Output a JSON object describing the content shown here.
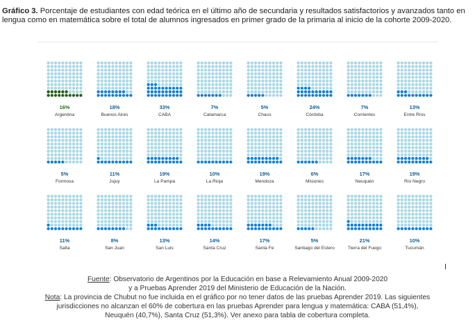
{
  "title": {
    "prefix": "Gráfico 3.",
    "text": "Porcentaje de estudiantes con edad teórica en el último año de secundaria y resultados satisfactorios y avanzados tanto en lengua como en matemática sobre el total de alumnos ingresados en primer grado de la primaria al inicio de la cohorte 2009-2020."
  },
  "colors": {
    "empty": "#a8d7e6",
    "filled": "#0e7fd6",
    "argentina": "#1f5f12"
  },
  "chart_data": {
    "type": "waffle",
    "grid_size": [
      10,
      10
    ],
    "unit": "%",
    "items": [
      {
        "name": "Argentina",
        "value": 16,
        "label": "16%"
      },
      {
        "name": "Buenos Aires",
        "value": 18,
        "label": "18%"
      },
      {
        "name": "CABA",
        "value": 33,
        "label": "33%"
      },
      {
        "name": "Catamarca",
        "value": 7,
        "label": "7%"
      },
      {
        "name": "Chaco",
        "value": 5,
        "label": "5%"
      },
      {
        "name": "Córdoba",
        "value": 24,
        "label": "24%"
      },
      {
        "name": "Corrientes",
        "value": 7,
        "label": "7%"
      },
      {
        "name": "Entre Ríos",
        "value": 13,
        "label": "13%"
      },
      {
        "name": "Formosa",
        "value": 5,
        "label": "5%"
      },
      {
        "name": "Jujuy",
        "value": 11,
        "label": "11%"
      },
      {
        "name": "La Pampa",
        "value": 19,
        "label": "19%"
      },
      {
        "name": "La Rioja",
        "value": 10,
        "label": "10%"
      },
      {
        "name": "Mendoza",
        "value": 19,
        "label": "19%"
      },
      {
        "name": "Misiones",
        "value": 6,
        "label": "6%"
      },
      {
        "name": "Neuquén",
        "value": 17,
        "label": "17%"
      },
      {
        "name": "Río Negro",
        "value": 19,
        "label": "19%"
      },
      {
        "name": "Salta",
        "value": 11,
        "label": "11%"
      },
      {
        "name": "San Juan",
        "value": 8,
        "label": "8%"
      },
      {
        "name": "San Luis",
        "value": 13,
        "label": "13%"
      },
      {
        "name": "Santa Cruz",
        "value": 14,
        "label": "14%"
      },
      {
        "name": "Santa Fe",
        "value": 17,
        "label": "17%"
      },
      {
        "name": "Santiago del Estero",
        "value": 5,
        "label": "5%"
      },
      {
        "name": "Tierra del Fuego",
        "value": 21,
        "label": "21%"
      },
      {
        "name": "Tucumán",
        "value": 10,
        "label": "10%"
      }
    ]
  },
  "footer": {
    "fuente_label": "Fuente",
    "fuente_text": ": Observatorio de Argentinos por la Educación en base a Relevamiento Anual 2009-2020",
    "fuente_text2": "y a Pruebas Aprender 2019 del Ministerio de Educación de la Nación.",
    "nota_label": "Nota",
    "nota_text": ": La provincia de Chubut no fue incluida en el gráfico por no tener datos de las pruebas Aprender 2019. Las siguientes",
    "nota_text2": "jurisdicciones no alcanzan el 60% de cobertura en las pruebas Aprender para lengua y matemática: CABA (51,4%),",
    "nota_text3": "Neuquén (40,7%), Santa Cruz (51,3%). Ver anexo para tabla de cobertura completa."
  }
}
